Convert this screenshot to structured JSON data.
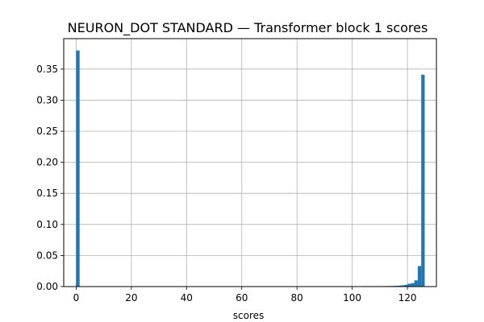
{
  "chart_data": {
    "type": "bar",
    "title": "NEURON_DOT STANDARD — Transformer block 1 scores",
    "xlabel": "scores",
    "ylabel": "",
    "xlim": [
      -4.5,
      130.5
    ],
    "ylim": [
      0,
      0.399
    ],
    "xticks": [
      0,
      20,
      40,
      60,
      80,
      100,
      120
    ],
    "yticks": [
      0.0,
      0.05,
      0.1,
      0.15,
      0.2,
      0.25,
      0.3,
      0.35
    ],
    "ytick_labels": [
      "0.00",
      "0.05",
      "0.10",
      "0.15",
      "0.20",
      "0.25",
      "0.30",
      "0.35"
    ],
    "grid": true,
    "bar_color": "#1f77b4",
    "bin_width": 1.25,
    "bins": [
      {
        "x": 0.0,
        "value": 0.38
      },
      {
        "x": 103.75,
        "value": 0.0004
      },
      {
        "x": 105.0,
        "value": 0.0004
      },
      {
        "x": 106.25,
        "value": 0.0005
      },
      {
        "x": 107.5,
        "value": 0.0005
      },
      {
        "x": 108.75,
        "value": 0.0006
      },
      {
        "x": 110.0,
        "value": 0.0007
      },
      {
        "x": 111.25,
        "value": 0.0008
      },
      {
        "x": 112.5,
        "value": 0.0009
      },
      {
        "x": 113.75,
        "value": 0.001
      },
      {
        "x": 115.0,
        "value": 0.0012
      },
      {
        "x": 116.25,
        "value": 0.0015
      },
      {
        "x": 117.5,
        "value": 0.002
      },
      {
        "x": 118.75,
        "value": 0.0028
      },
      {
        "x": 120.0,
        "value": 0.0045
      },
      {
        "x": 121.25,
        "value": 0.0055
      },
      {
        "x": 122.5,
        "value": 0.01
      },
      {
        "x": 123.75,
        "value": 0.033
      },
      {
        "x": 125.0,
        "value": 0.341
      }
    ]
  }
}
